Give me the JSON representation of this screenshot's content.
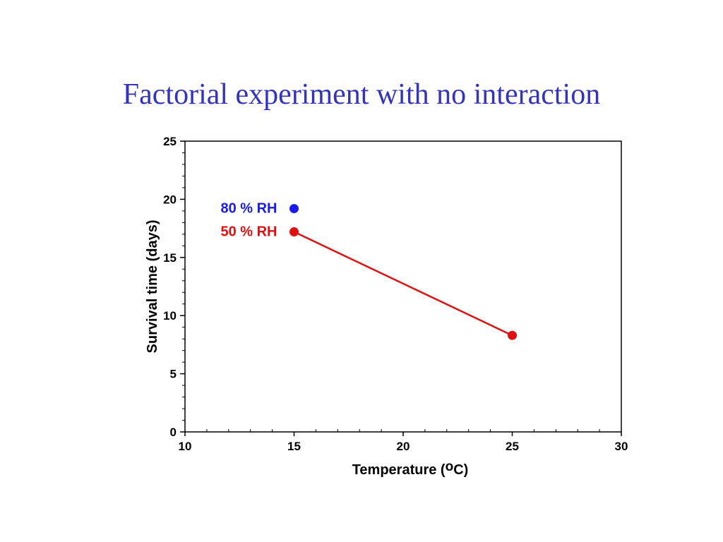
{
  "slide": {
    "title": "Factorial experiment with no interaction"
  },
  "chart_data": {
    "type": "line",
    "title": "",
    "xlabel": "Temperature (",
    "xlabel_superscript": "o",
    "xlabel_suffix": "C)",
    "ylabel": "Survival time (days)",
    "xlim": [
      10,
      30
    ],
    "ylim": [
      0,
      25
    ],
    "xticks": [
      10,
      15,
      20,
      25,
      30
    ],
    "yticks": [
      0,
      5,
      10,
      15,
      20,
      25
    ],
    "grid": false,
    "series": [
      {
        "name": "80 % RH",
        "color": "#1a1aee",
        "points": [
          {
            "x": 15,
            "y": 19.2
          }
        ]
      },
      {
        "name": "50 % RH",
        "color": "#e01010",
        "points": [
          {
            "x": 15,
            "y": 17.2
          },
          {
            "x": 25,
            "y": 8.3
          }
        ]
      }
    ]
  }
}
